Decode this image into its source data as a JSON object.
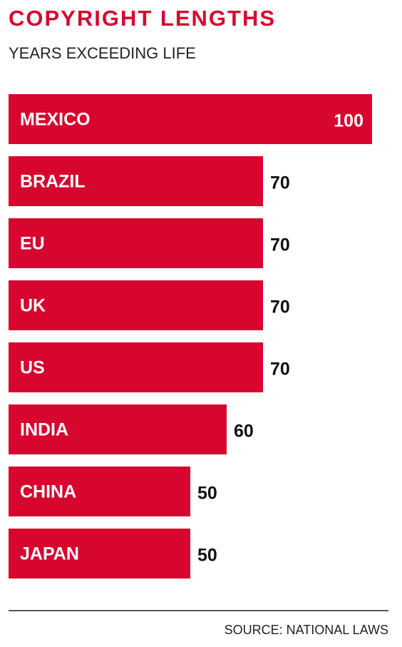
{
  "chart_data": {
    "type": "bar",
    "orientation": "horizontal",
    "title": "COPYRIGHT LENGTHS",
    "subtitle": "YEARS EXCEEDING LIFE",
    "categories": [
      "MEXICO",
      "BRAZIL",
      "EU",
      "UK",
      "US",
      "INDIA",
      "CHINA",
      "JAPAN"
    ],
    "values": [
      100,
      70,
      70,
      70,
      70,
      60,
      50,
      50
    ],
    "color": "#d7062f",
    "source": "SOURCE: NATIONAL LAWS"
  }
}
